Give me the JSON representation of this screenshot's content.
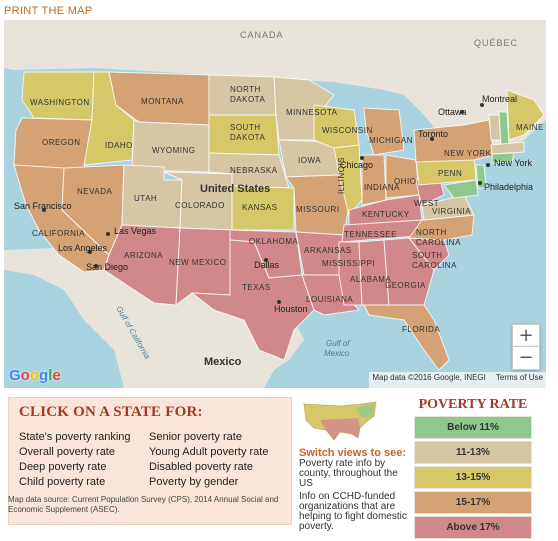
{
  "print_link": "PRINT THE MAP",
  "map": {
    "colors": {
      "below_11": "#8fc88d",
      "p11_13": "#d6c6a3",
      "p13_15": "#d6c768",
      "p15_17": "#d4a275",
      "above_17": "#d0888a"
    },
    "labels": {
      "canada": "CANADA",
      "quebec": "QUÉBEC",
      "united_states": "United States",
      "mexico": "Mexico",
      "washington": "WASHINGTON",
      "montana": "MONTANA",
      "north_dakota": "NORTH DAKOTA",
      "minnesota": "MINNESOTA",
      "oregon": "OREGON",
      "idaho": "IDAHO",
      "wyoming": "WYOMING",
      "south_dakota": "SOUTH DAKOTA",
      "wisconsin": "WISCONSIN",
      "michigan": "MICHIGAN",
      "new_york": "NEW YORK",
      "maine": "MAINE",
      "nevada": "NEVADA",
      "utah": "UTAH",
      "colorado": "COLORADO",
      "nebraska": "NEBRASKA",
      "iowa": "IOWA",
      "illinois": "ILLINOIS",
      "indiana": "INDIANA",
      "ohio": "OHIO",
      "penn": "PENN",
      "california": "CALIFORNIA",
      "kansas": "KANSAS",
      "missouri": "MISSOURI",
      "kentucky": "KENTUCKY",
      "west_virginia": "WEST",
      "virginia": "VIRGINIA",
      "arizona": "ARIZONA",
      "new_mexico": "NEW MEXICO",
      "oklahoma": "OKLAHOMA",
      "arkansas": "ARKANSAS",
      "tennessee": "TENNESSEE",
      "north_carolina": "NORTH CAROLINA",
      "south_carolina": "SOUTH CAROLINA",
      "texas": "TEXAS",
      "mississippi": "MISSISSIPPI",
      "alabama": "ALABAMA",
      "georgia": "GEORGIA",
      "louisiana": "LOUISIANA",
      "florida": "FLORIDA",
      "ottawa": "Ottawa",
      "montreal": "Montreal",
      "toronto": "Toronto",
      "chicago": "Chicago",
      "new_york_city": "New York",
      "philadelphia": "Philadelphia",
      "san_francisco": "San Francisco",
      "las_vegas": "Las Vegas",
      "los_angeles": "Los Angeles",
      "san_diego": "San Diego",
      "dallas": "Dallas",
      "houston": "Houston",
      "gulf_california": "Gulf of California",
      "gulf_mexico": "Gulf of Mexico"
    },
    "zoom_in": "+",
    "zoom_out": "−",
    "attribution": "Map data ©2016 Google, INEGI",
    "terms": "Terms of Use",
    "google_logo": [
      "G",
      "o",
      "o",
      "g",
      "l",
      "e"
    ],
    "google_colors": [
      "#4285f4",
      "#ea4335",
      "#fbbc05",
      "#4285f4",
      "#34a853",
      "#ea4335"
    ]
  },
  "click_panel": {
    "title": "CLICK ON A STATE FOR:",
    "options": [
      "State's poverty ranking",
      "Senior poverty rate",
      "Overall poverty rate",
      "Young Adult poverty rate",
      "Deep poverty rate",
      "Disabled poverty rate",
      "Child poverty rate",
      "Poverty by gender"
    ],
    "source": "Map data source: Current Population Survey (CPS), 2014 Annual Social and Economic Supplement (ASEC)."
  },
  "switch": {
    "title": "Switch views to see:",
    "text": "Poverty rate info by county, throughout the US",
    "info": "Info on CCHD-funded organizations that are helping to fight domestic poverty."
  },
  "legend": {
    "title": "POVERTY RATE",
    "items": [
      {
        "label": "Below 11%",
        "color": "#8fc88d"
      },
      {
        "label": "11-13%",
        "color": "#d6c6a3"
      },
      {
        "label": "13-15%",
        "color": "#d6c768"
      },
      {
        "label": "15-17%",
        "color": "#d4a275"
      },
      {
        "label": "Above 17%",
        "color": "#d0888a"
      }
    ]
  }
}
